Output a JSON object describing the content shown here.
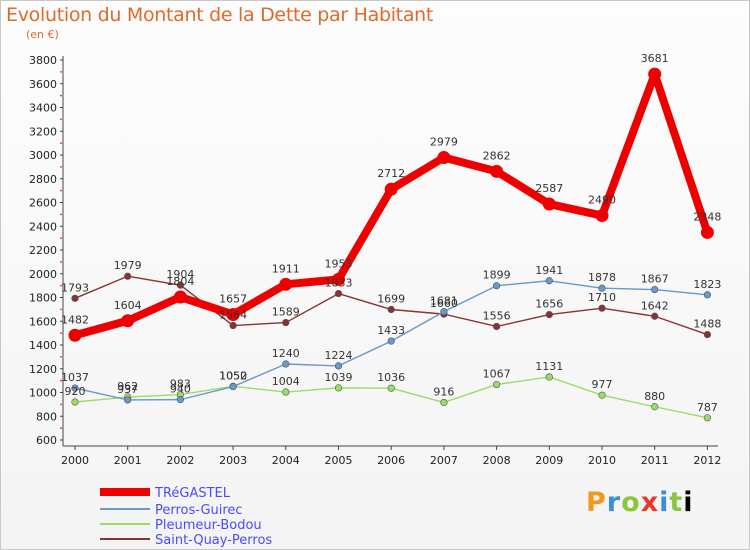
{
  "title": "Evolution du Montant de la Dette par Habitant",
  "unit": "(en €)",
  "logo": [
    "P",
    "r",
    "o",
    "x",
    "i",
    "t",
    "i"
  ],
  "chart_data": {
    "type": "line",
    "x": [
      "2000",
      "2001",
      "2002",
      "2003",
      "2004",
      "2005",
      "2006",
      "2007",
      "2008",
      "2009",
      "2010",
      "2011",
      "2012"
    ],
    "ylim": [
      600,
      3800
    ],
    "yticks": [
      600,
      800,
      1000,
      1200,
      1400,
      1600,
      1800,
      2000,
      2200,
      2400,
      2600,
      2800,
      3000,
      3200,
      3400,
      3600,
      3800
    ],
    "grid": false,
    "legend_position": "bottom-left",
    "series": [
      {
        "name": "TRéGASTEL",
        "color": "#ee0000",
        "values": [
          1482,
          1604,
          1804,
          1657,
          1911,
          1953,
          2712,
          2979,
          2862,
          2587,
          2490,
          3681,
          2348
        ]
      },
      {
        "name": "Perros-Guirec",
        "color": "#6699cc",
        "values": [
          1037,
          937,
          940,
          1050,
          1240,
          1224,
          1433,
          1681,
          1899,
          1941,
          1878,
          1867,
          1823
        ]
      },
      {
        "name": "Pleumeur-Bodou",
        "color": "#99dd66",
        "values": [
          920,
          962,
          983,
          1052,
          1004,
          1039,
          1036,
          916,
          1067,
          1131,
          977,
          880,
          787
        ]
      },
      {
        "name": "Saint-Quay-Perros",
        "color": "#883333",
        "values": [
          1793,
          1979,
          1904,
          1564,
          1589,
          1833,
          1699,
          1660,
          1556,
          1656,
          1710,
          1642,
          1488
        ]
      }
    ]
  }
}
